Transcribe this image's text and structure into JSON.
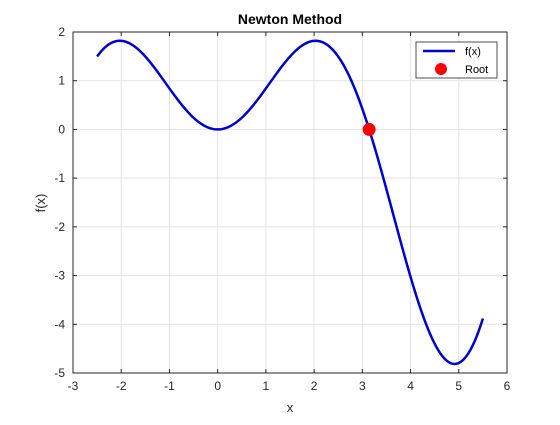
{
  "chart_data": {
    "type": "line",
    "title": "Newton Method",
    "xlabel": "x",
    "ylabel": "f(x)",
    "xlim": [
      -3,
      6
    ],
    "ylim": [
      -5,
      2
    ],
    "xticks": [
      -3,
      -2,
      -1,
      0,
      1,
      2,
      3,
      4,
      5,
      6
    ],
    "yticks": [
      -5,
      -4,
      -3,
      -2,
      -1,
      0,
      1,
      2
    ],
    "grid": true,
    "legend_position": "top-right",
    "series": [
      {
        "name": "f(x)",
        "type": "line",
        "color": "#0000cc",
        "x_range": [
          -2.5,
          5.5
        ],
        "expression": "x*sin(x)",
        "sample_points": [
          [
            -2.5,
            1.5
          ],
          [
            -2.0,
            1.82
          ],
          [
            -1.0,
            0.84
          ],
          [
            0.0,
            0.0
          ],
          [
            1.0,
            0.84
          ],
          [
            2.0,
            1.82
          ],
          [
            3.14,
            0.0
          ],
          [
            4.0,
            -3.03
          ],
          [
            4.91,
            -4.81
          ],
          [
            5.5,
            -3.9
          ]
        ]
      },
      {
        "name": "Root",
        "type": "scatter",
        "color": "#ff0000",
        "points": [
          [
            3.14159,
            0
          ]
        ]
      }
    ]
  }
}
